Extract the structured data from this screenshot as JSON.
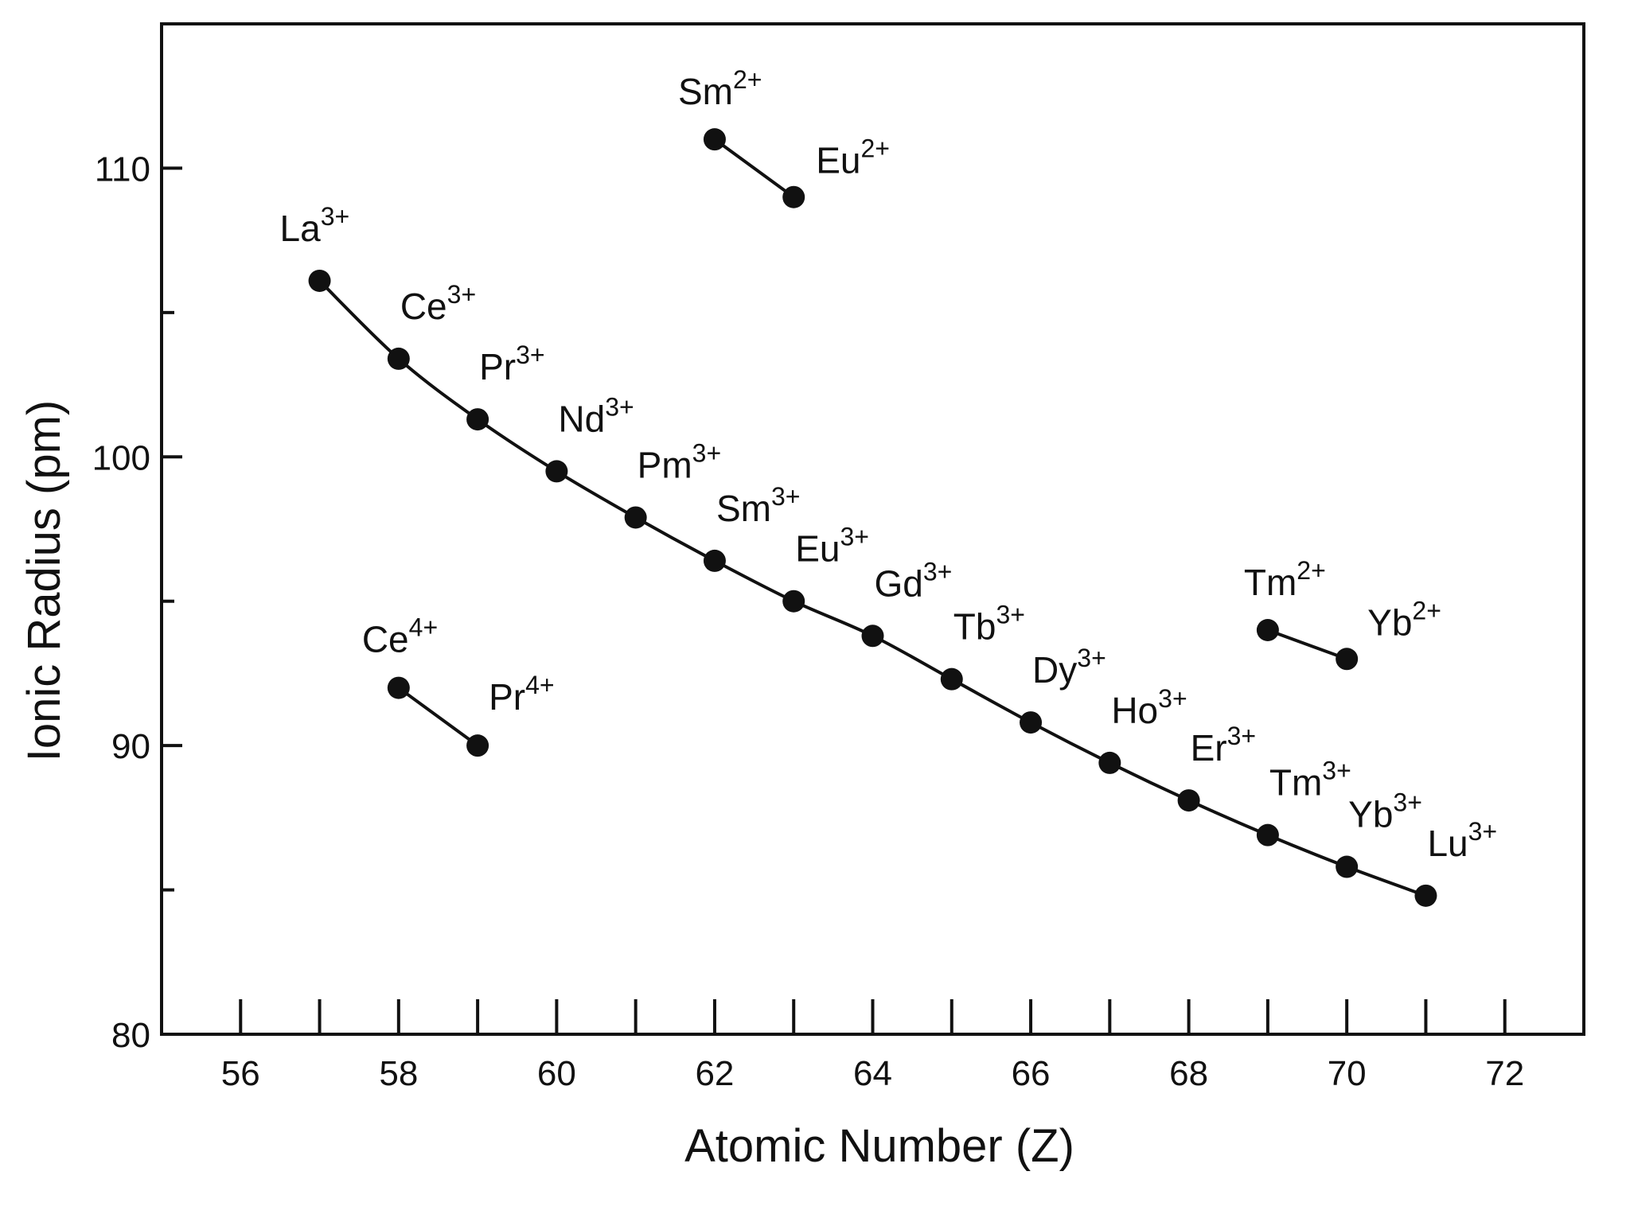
{
  "chart_data": {
    "type": "line",
    "xlabel": "Atomic Number (Z)",
    "ylabel": "Ionic Radius (pm)",
    "xlim": [
      55,
      73
    ],
    "ylim": [
      80,
      115
    ],
    "x_ticks": [
      56,
      57,
      58,
      59,
      60,
      61,
      62,
      63,
      64,
      65,
      66,
      67,
      68,
      69,
      70,
      71,
      72
    ],
    "x_tick_labels": [
      "56",
      "58",
      "60",
      "62",
      "64",
      "66",
      "68",
      "70",
      "72"
    ],
    "x_tick_label_values": [
      56,
      58,
      60,
      62,
      64,
      66,
      68,
      70,
      72
    ],
    "y_ticks": [
      80,
      85,
      90,
      95,
      100,
      105,
      110
    ],
    "y_tick_labels": [
      "80",
      "90",
      "100",
      "110"
    ],
    "y_tick_label_values": [
      80,
      90,
      100,
      110
    ],
    "grid": false,
    "legend": "none",
    "series": [
      {
        "name": "3+",
        "points": [
          {
            "label": "La",
            "charge": "3+",
            "x": 57,
            "y": 106.1
          },
          {
            "label": "Ce",
            "charge": "3+",
            "x": 58,
            "y": 103.4
          },
          {
            "label": "Pr",
            "charge": "3+",
            "x": 59,
            "y": 101.3
          },
          {
            "label": "Nd",
            "charge": "3+",
            "x": 60,
            "y": 99.5
          },
          {
            "label": "Pm",
            "charge": "3+",
            "x": 61,
            "y": 97.9
          },
          {
            "label": "Sm",
            "charge": "3+",
            "x": 62,
            "y": 96.4
          },
          {
            "label": "Eu",
            "charge": "3+",
            "x": 63,
            "y": 95.0
          },
          {
            "label": "Gd",
            "charge": "3+",
            "x": 64,
            "y": 93.8
          },
          {
            "label": "Tb",
            "charge": "3+",
            "x": 65,
            "y": 92.3
          },
          {
            "label": "Dy",
            "charge": "3+",
            "x": 66,
            "y": 90.8
          },
          {
            "label": "Ho",
            "charge": "3+",
            "x": 67,
            "y": 89.4
          },
          {
            "label": "Er",
            "charge": "3+",
            "x": 68,
            "y": 88.1
          },
          {
            "label": "Tm",
            "charge": "3+",
            "x": 69,
            "y": 86.9
          },
          {
            "label": "Yb",
            "charge": "3+",
            "x": 70,
            "y": 85.8
          },
          {
            "label": "Lu",
            "charge": "3+",
            "x": 71,
            "y": 84.8
          }
        ]
      },
      {
        "name": "4+",
        "points": [
          {
            "label": "Ce",
            "charge": "4+",
            "x": 58,
            "y": 92.0
          },
          {
            "label": "Pr",
            "charge": "4+",
            "x": 59,
            "y": 90.0
          }
        ]
      },
      {
        "name": "2+ (Sm, Eu)",
        "points": [
          {
            "label": "Sm",
            "charge": "2+",
            "x": 62,
            "y": 111.0
          },
          {
            "label": "Eu",
            "charge": "2+",
            "x": 63,
            "y": 109.0
          }
        ]
      },
      {
        "name": "2+ (Tm, Yb)",
        "points": [
          {
            "label": "Tm",
            "charge": "2+",
            "x": 69,
            "y": 94.0
          },
          {
            "label": "Yb",
            "charge": "2+",
            "x": 70,
            "y": 93.0
          }
        ]
      }
    ],
    "colors": {
      "line": "#111111",
      "marker": "#111111",
      "axes": "#111111",
      "background": "#ffffff"
    }
  }
}
